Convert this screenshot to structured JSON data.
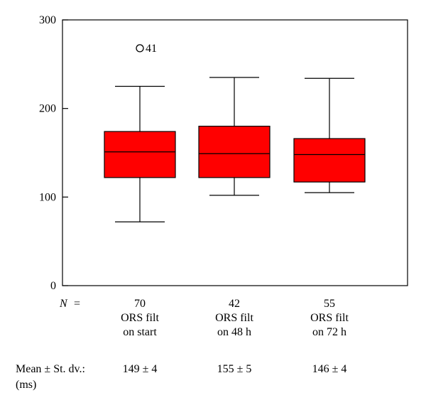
{
  "chart_data": {
    "type": "boxplot",
    "ylim": [
      0,
      300
    ],
    "yticks": [
      0,
      100,
      200,
      300
    ],
    "n_label": "N",
    "n_equals": "=",
    "categories": [
      {
        "n": "70",
        "label_line1": "ORS filt",
        "label_line2": "on start"
      },
      {
        "n": "42",
        "label_line1": "ORS filt",
        "label_line2": "on 48 h"
      },
      {
        "n": "55",
        "label_line1": "ORS filt",
        "label_line2": "on 72 h"
      }
    ],
    "boxes": [
      {
        "whisker_low": 72,
        "q1": 122,
        "median": 151,
        "q3": 174,
        "whisker_high": 225,
        "outliers": [
          {
            "value": 268,
            "label": "41"
          }
        ]
      },
      {
        "whisker_low": 102,
        "q1": 122,
        "median": 149,
        "q3": 180,
        "whisker_high": 235,
        "outliers": []
      },
      {
        "whisker_low": 105,
        "q1": 117,
        "median": 148,
        "q3": 166,
        "whisker_high": 234,
        "outliers": []
      }
    ],
    "mean_label_line1": "Mean ± St. dv.:",
    "mean_label_line2": "(ms)",
    "means": [
      "149 ± 4",
      "155 ± 5",
      "146 ± 4"
    ],
    "colors": {
      "box_fill": "#ff0000",
      "line": "#000000"
    }
  }
}
